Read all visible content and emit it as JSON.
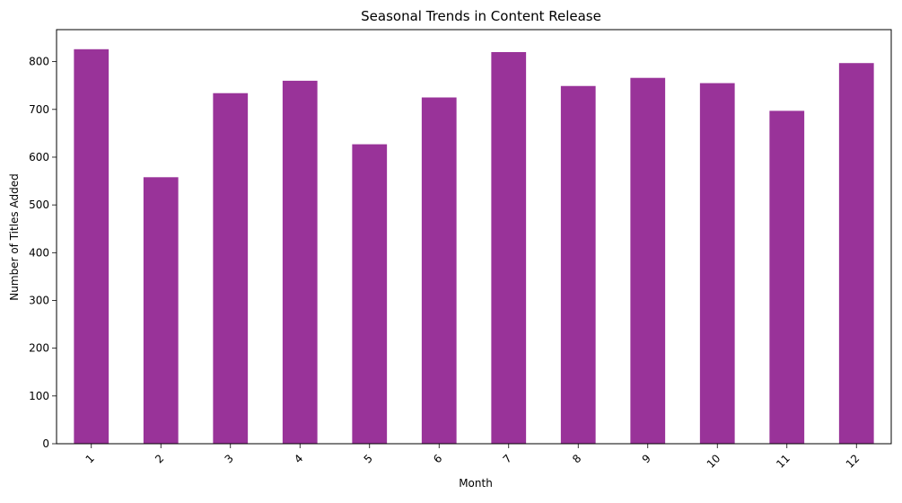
{
  "chart_data": {
    "type": "bar",
    "title": "Seasonal Trends in Content Release",
    "xlabel": "Month",
    "ylabel": "Number of Titles Added",
    "categories": [
      "1",
      "2",
      "3",
      "4",
      "5",
      "6",
      "7",
      "8",
      "9",
      "10",
      "11",
      "12"
    ],
    "values": [
      826,
      558,
      734,
      760,
      627,
      725,
      820,
      749,
      766,
      755,
      697,
      797
    ],
    "ylim": [
      0,
      867
    ],
    "yticks": [
      0,
      100,
      200,
      300,
      400,
      500,
      600,
      700,
      800
    ],
    "bar_color": "#993399",
    "grid": false,
    "legend": "none",
    "x_tick_rotation": "45 degrees"
  }
}
